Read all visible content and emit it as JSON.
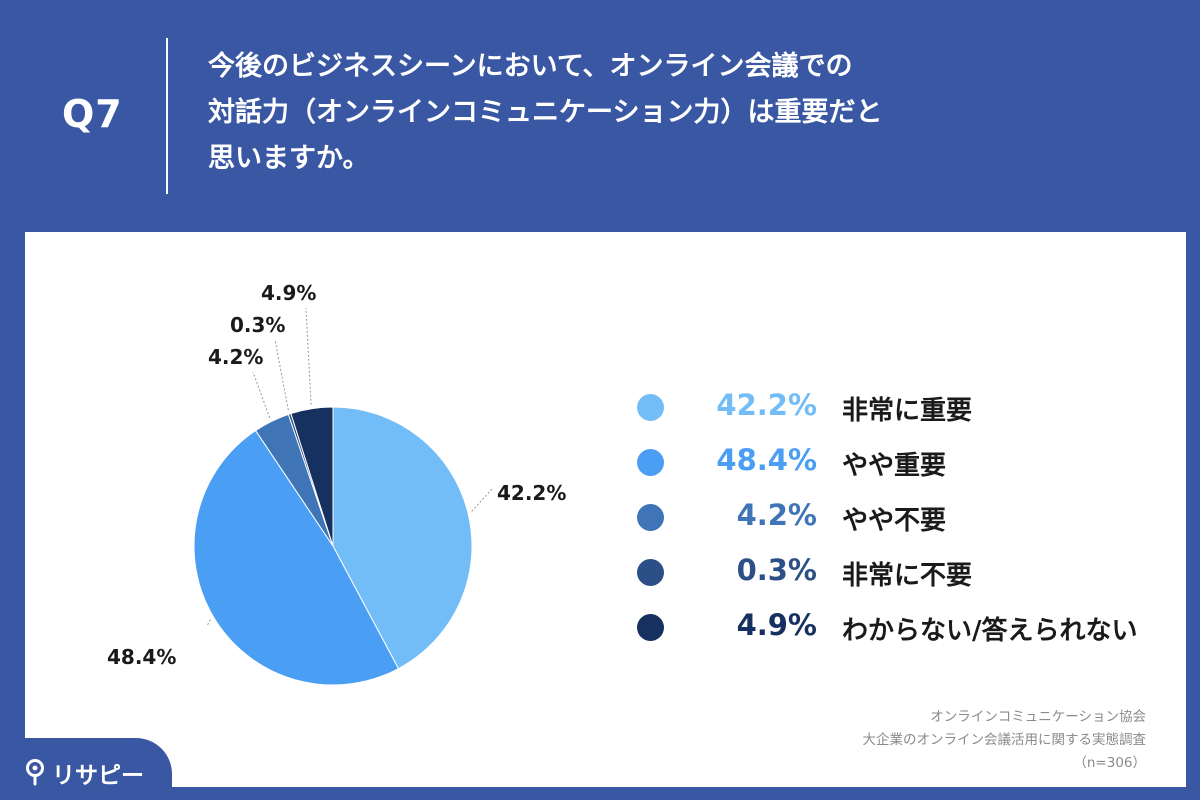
{
  "header": {
    "q_label": "Q7",
    "question_lines": [
      "今後のビジネスシーンにおいて、オンライン会議での",
      "対話力（オンラインコミュニケーション力）は重要だと",
      "思いますか。"
    ]
  },
  "chart_data": {
    "type": "pie",
    "categories": [
      "非常に重要",
      "やや重要",
      "やや不要",
      "非常に不要",
      "わからない/答えられない"
    ],
    "values": [
      42.2,
      48.4,
      4.2,
      0.3,
      4.9
    ],
    "data_labels": [
      "42.2%",
      "48.4%",
      "4.2%",
      "0.3%",
      "4.9%"
    ],
    "colors": [
      "#72bdf7",
      "#4a9ef4",
      "#3f74b6",
      "#2c4f87",
      "#16305f"
    ],
    "legend": "right",
    "start_angle_deg": 0,
    "direction": "clockwise"
  },
  "legend_items": [
    {
      "pct": "42.2%",
      "name": "非常に重要"
    },
    {
      "pct": "48.4%",
      "name": "やや重要"
    },
    {
      "pct": "4.2%",
      "name": "やや不要"
    },
    {
      "pct": "0.3%",
      "name": "非常に不要"
    },
    {
      "pct": "4.9%",
      "name": "わからない/答えられない"
    }
  ],
  "source": {
    "line1": "オンラインコミュニケーション協会",
    "line2": "大企業のオンライン会議活用に関する実態調査",
    "line3": "（n=306）"
  },
  "logo": {
    "text": "リサピー",
    "icon": "pin-icon"
  }
}
